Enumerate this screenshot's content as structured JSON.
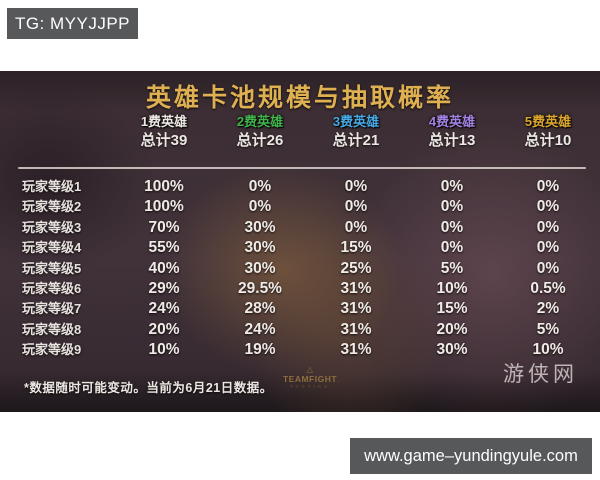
{
  "tg_box": {
    "label": "TG: MYYJJPP"
  },
  "url_box": {
    "label": "www.game–yundingyule.com"
  },
  "poster": {
    "title": "英雄卡池规模与抽取概率",
    "colors": {
      "title": "#deb052",
      "body_text": "#f0ebe7",
      "divider": "#e8e2dc"
    },
    "columns": [
      {
        "cost_label": "1费英雄",
        "total": "总计39",
        "color": "#ece8e4"
      },
      {
        "cost_label": "2费英雄",
        "total": "总计26",
        "color": "#41b24c"
      },
      {
        "cost_label": "3费英雄",
        "total": "总计21",
        "color": "#47a9e4"
      },
      {
        "cost_label": "4费英雄",
        "total": "总计13",
        "color": "#a382e2"
      },
      {
        "cost_label": "5费英雄",
        "total": "总计10",
        "color": "#dca62e"
      }
    ],
    "rows": [
      {
        "label": "玩家等级1",
        "values": [
          "100%",
          "0%",
          "0%",
          "0%",
          "0%"
        ]
      },
      {
        "label": "玩家等级2",
        "values": [
          "100%",
          "0%",
          "0%",
          "0%",
          "0%"
        ]
      },
      {
        "label": "玩家等级3",
        "values": [
          "70%",
          "30%",
          "0%",
          "0%",
          "0%"
        ]
      },
      {
        "label": "玩家等级4",
        "values": [
          "55%",
          "30%",
          "15%",
          "0%",
          "0%"
        ]
      },
      {
        "label": "玩家等级5",
        "values": [
          "40%",
          "30%",
          "25%",
          "5%",
          "0%"
        ]
      },
      {
        "label": "玩家等级6",
        "values": [
          "29%",
          "29.5%",
          "31%",
          "10%",
          "0.5%"
        ]
      },
      {
        "label": "玩家等级7",
        "values": [
          "24%",
          "28%",
          "31%",
          "15%",
          "2%"
        ]
      },
      {
        "label": "玩家等级8",
        "values": [
          "20%",
          "24%",
          "31%",
          "20%",
          "5%"
        ]
      },
      {
        "label": "玩家等级9",
        "values": [
          "10%",
          "19%",
          "31%",
          "30%",
          "10%"
        ]
      }
    ],
    "footnote": "*数据随时可能变动。当前为6月21日数据。",
    "logo": {
      "emblem": "△",
      "line1": "TEAMFIGHT",
      "line2": "TACTICS"
    },
    "watermark": "游侠网"
  },
  "chart_data": {
    "type": "table",
    "title": "英雄卡池规模与抽取概率",
    "columns": [
      "玩家等级",
      "1费英雄 总计39",
      "2费英雄 总计26",
      "3费英雄 总计21",
      "4费英雄 总计13",
      "5费英雄 总计10"
    ],
    "rows": [
      [
        "玩家等级1",
        "100%",
        "0%",
        "0%",
        "0%",
        "0%"
      ],
      [
        "玩家等级2",
        "100%",
        "0%",
        "0%",
        "0%",
        "0%"
      ],
      [
        "玩家等级3",
        "70%",
        "30%",
        "0%",
        "0%",
        "0%"
      ],
      [
        "玩家等级4",
        "55%",
        "30%",
        "15%",
        "0%",
        "0%"
      ],
      [
        "玩家等级5",
        "40%",
        "30%",
        "25%",
        "5%",
        "0%"
      ],
      [
        "玩家等级6",
        "29%",
        "29.5%",
        "31%",
        "10%",
        "0.5%"
      ],
      [
        "玩家等级7",
        "24%",
        "28%",
        "31%",
        "15%",
        "2%"
      ],
      [
        "玩家等级8",
        "20%",
        "24%",
        "31%",
        "20%",
        "5%"
      ],
      [
        "玩家等级9",
        "10%",
        "19%",
        "31%",
        "30%",
        "10%"
      ]
    ],
    "footnote": "*数据随时可能变动。当前为6月21日数据。"
  }
}
